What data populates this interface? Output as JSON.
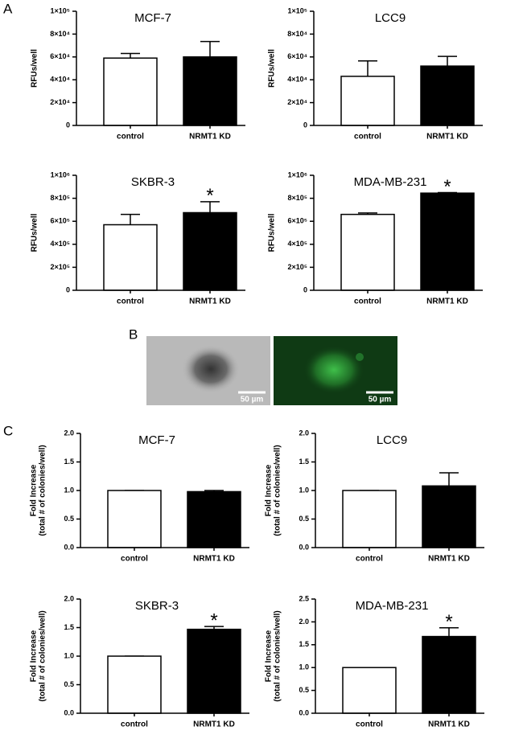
{
  "panels": [
    "A",
    "B",
    "C"
  ],
  "scale_bars": [
    "50 µm",
    "50 µm"
  ],
  "chart_data": [
    {
      "type": "bar",
      "title": "MCF-7",
      "ylabel": [
        "RFUs/well"
      ],
      "categories": [
        "control",
        "NRMT1 KD"
      ],
      "values": [
        59000,
        60000
      ],
      "errors": [
        4000,
        13500
      ],
      "colors": [
        "#ffffff",
        "#000000"
      ],
      "ylim": [
        0,
        100000
      ],
      "yticks": [
        0,
        {
          "value": 20000,
          "label": "2×10⁴"
        },
        {
          "value": 40000,
          "label": "4×10⁴"
        },
        {
          "value": 60000,
          "label": "6×10⁴"
        },
        {
          "value": 80000,
          "label": "8×10⁴"
        },
        {
          "value": 100000,
          "label": "1×10⁵"
        }
      ]
    },
    {
      "type": "bar",
      "title": "LCC9",
      "ylabel": [
        "RFUs/well"
      ],
      "categories": [
        "control",
        "NRMT1 KD"
      ],
      "values": [
        43000,
        52000
      ],
      "errors": [
        13500,
        8500
      ],
      "colors": [
        "#ffffff",
        "#000000"
      ],
      "ylim": [
        0,
        100000
      ],
      "yticks": [
        0,
        {
          "value": 20000,
          "label": "2×10⁴"
        },
        {
          "value": 40000,
          "label": "4×10⁴"
        },
        {
          "value": 60000,
          "label": "6×10⁴"
        },
        {
          "value": 80000,
          "label": "8×10⁴"
        },
        {
          "value": 100000,
          "label": "1×10⁵"
        }
      ]
    },
    {
      "type": "bar",
      "title": "SKBR-3",
      "ylabel": [
        "RFUs/well"
      ],
      "categories": [
        "control",
        "NRMT1 KD"
      ],
      "values": [
        570000,
        675000
      ],
      "errors": [
        90000,
        95000
      ],
      "colors": [
        "#ffffff",
        "#000000"
      ],
      "annotation": "*",
      "ylim": [
        0,
        1000000
      ],
      "yticks": [
        0,
        {
          "value": 200000,
          "label": "2×10⁵"
        },
        {
          "value": 400000,
          "label": "4×10⁵"
        },
        {
          "value": 600000,
          "label": "6×10⁵"
        },
        {
          "value": 800000,
          "label": "8×10⁵"
        },
        {
          "value": 1000000,
          "label": "1×10⁶"
        }
      ]
    },
    {
      "type": "bar",
      "title": "MDA-MB-231",
      "ylabel": [
        "RFUs/well"
      ],
      "categories": [
        "control",
        "NRMT1 KD"
      ],
      "values": [
        660000,
        845000
      ],
      "errors": [
        12000,
        5000
      ],
      "colors": [
        "#ffffff",
        "#000000"
      ],
      "annotation": "*",
      "ylim": [
        0,
        1000000
      ],
      "yticks": [
        0,
        {
          "value": 200000,
          "label": "2×10⁵"
        },
        {
          "value": 400000,
          "label": "4×10⁵"
        },
        {
          "value": 600000,
          "label": "6×10⁵"
        },
        {
          "value": 800000,
          "label": "8×10⁵"
        },
        {
          "value": 1000000,
          "label": "1×10⁶"
        }
      ]
    },
    {
      "type": "bar",
      "title": "MCF-7",
      "ylabel": [
        "Fold Increase",
        "(total # of colonies/well)"
      ],
      "categories": [
        "control",
        "NRMT1 KD"
      ],
      "values": [
        1.0,
        0.98
      ],
      "errors": [
        0,
        0.02
      ],
      "colors": [
        "#ffffff",
        "#000000"
      ],
      "ylim": [
        0,
        2
      ],
      "yticks": [
        {
          "value": 0,
          "label": "0.0"
        },
        0.5,
        {
          "value": 1,
          "label": "1.0"
        },
        1.5,
        {
          "value": 2,
          "label": "2.0"
        }
      ]
    },
    {
      "type": "bar",
      "title": "LCC9",
      "ylabel": [
        "Fold Increase",
        "(total # of colonies/well)"
      ],
      "categories": [
        "control",
        "NRMT1 KD"
      ],
      "values": [
        1.0,
        1.08
      ],
      "errors": [
        0,
        0.23
      ],
      "colors": [
        "#ffffff",
        "#000000"
      ],
      "ylim": [
        0,
        2
      ],
      "yticks": [
        {
          "value": 0,
          "label": "0.0"
        },
        0.5,
        {
          "value": 1,
          "label": "1.0"
        },
        1.5,
        {
          "value": 2,
          "label": "2.0"
        }
      ]
    },
    {
      "type": "bar",
      "title": "SKBR-3",
      "ylabel": [
        "Fold Increase",
        "(total # of colonies/well)"
      ],
      "categories": [
        "control",
        "NRMT1 KD"
      ],
      "values": [
        1.0,
        1.47
      ],
      "errors": [
        0,
        0.05
      ],
      "colors": [
        "#ffffff",
        "#000000"
      ],
      "annotation": "*",
      "ylim": [
        0,
        2
      ],
      "yticks": [
        {
          "value": 0,
          "label": "0.0"
        },
        0.5,
        {
          "value": 1,
          "label": "1.0"
        },
        1.5,
        {
          "value": 2,
          "label": "2.0"
        }
      ]
    },
    {
      "type": "bar",
      "title": "MDA-MB-231",
      "ylabel": [
        "Fold Increase",
        "(total # of colonies/well)"
      ],
      "categories": [
        "control",
        "NRMT1 KD"
      ],
      "values": [
        1.0,
        1.68
      ],
      "errors": [
        0,
        0.19
      ],
      "colors": [
        "#ffffff",
        "#000000"
      ],
      "annotation": "*",
      "ylim": [
        0,
        2.5
      ],
      "yticks": [
        {
          "value": 0,
          "label": "0.0"
        },
        0.5,
        {
          "value": 1,
          "label": "1.0"
        },
        1.5,
        {
          "value": 2,
          "label": "2.0"
        },
        2.5
      ]
    }
  ]
}
